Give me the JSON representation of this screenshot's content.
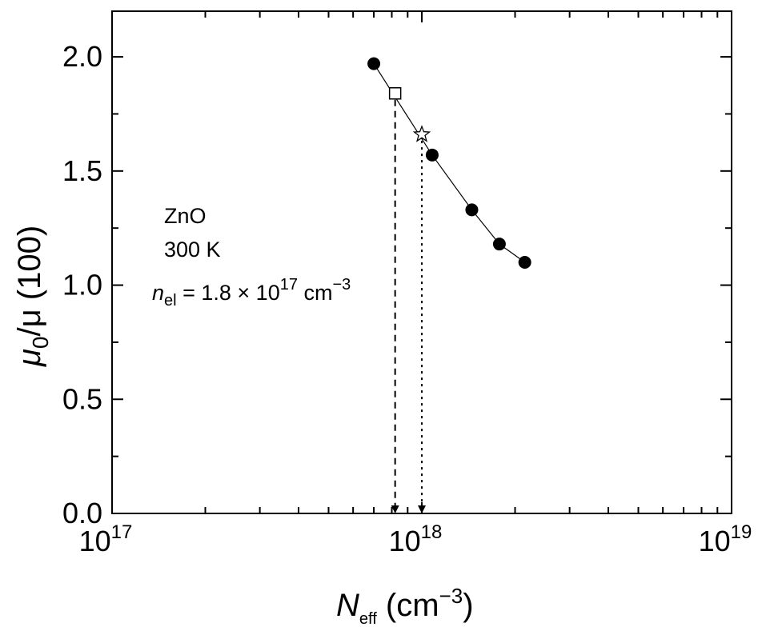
{
  "chart_data": {
    "type": "scatter",
    "x_scale": "log",
    "xlim": [
      1e+17,
      1e+19
    ],
    "ylim": [
      0.0,
      2.2
    ],
    "grid": false,
    "x_ticks": [
      {
        "value": 1e+17,
        "base": "10",
        "exp": "17"
      },
      {
        "value": 1e+18,
        "base": "10",
        "exp": "18"
      },
      {
        "value": 1e+19,
        "base": "10",
        "exp": "19"
      }
    ],
    "y_ticks": [
      "0.0",
      "0.5",
      "1.0",
      "1.5",
      "2.0"
    ],
    "xlabel": {
      "symbol": "N",
      "sub": "eff",
      "unit": " (cm",
      "unit_sup": "−3",
      "close": ")"
    },
    "ylabel": {
      "mu0": "μ",
      "sub": "0",
      "rest": "/μ (100)"
    },
    "annotations": {
      "material": "ZnO",
      "temperature": "300 K",
      "density_symbol": "n",
      "density_sub": "el",
      "density_value": " = 1.8 × 10",
      "density_exp": "17",
      "density_unit": " cm",
      "density_unit_exp": "−3"
    },
    "series": [
      {
        "marker": "filled-circle",
        "line": true,
        "points": [
          {
            "x": 7e+17,
            "y": 1.97
          },
          {
            "x": 1.08e+18,
            "y": 1.57
          },
          {
            "x": 1.45e+18,
            "y": 1.33
          },
          {
            "x": 1.78e+18,
            "y": 1.18
          },
          {
            "x": 2.15e+18,
            "y": 1.1
          }
        ]
      },
      {
        "marker": "open-square",
        "line": false,
        "points": [
          {
            "x": 8.2e+17,
            "y": 1.84
          }
        ],
        "drop_line": "dashed"
      },
      {
        "marker": "open-star",
        "line": false,
        "points": [
          {
            "x": 1e+18,
            "y": 1.66
          }
        ],
        "drop_line": "dotted"
      }
    ]
  }
}
